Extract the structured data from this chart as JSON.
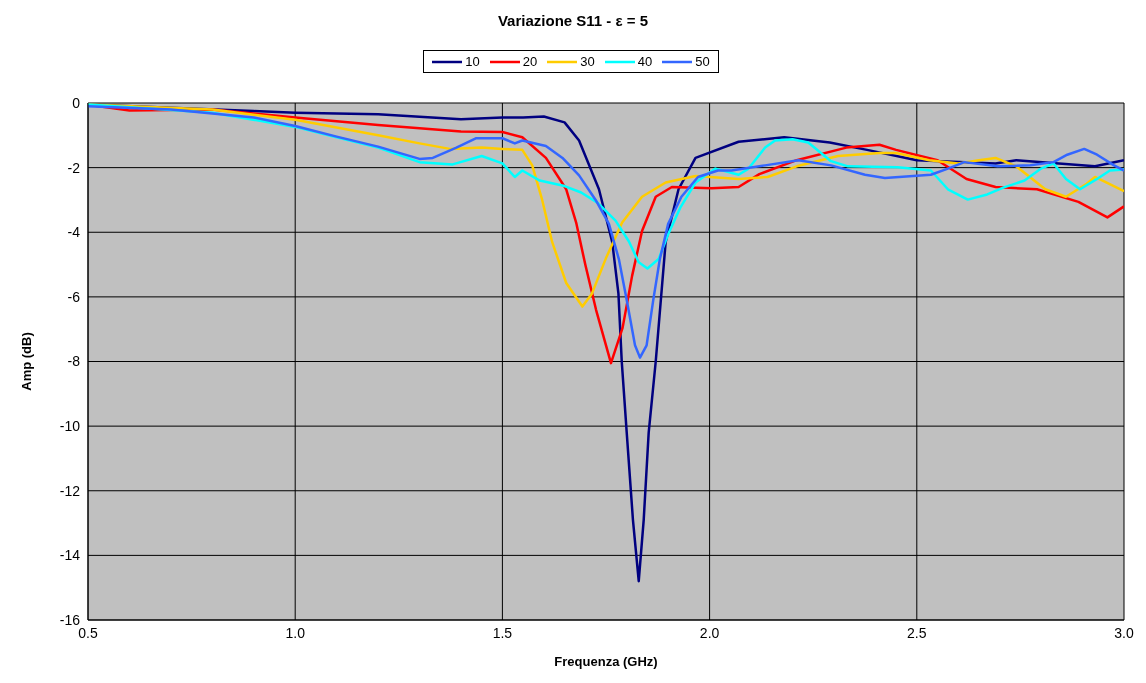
{
  "chart_data": {
    "type": "line",
    "title": "Variazione S11 - ε = 5",
    "xlabel": "Frequenza (GHz)",
    "ylabel": "Amp (dB)",
    "xlim": [
      0.5,
      3.0
    ],
    "ylim": [
      -16,
      0
    ],
    "xticks": [
      {
        "value": 0.5,
        "label": "0.5"
      },
      {
        "value": 1,
        "label": "1.0"
      },
      {
        "value": 1.5,
        "label": "1.5"
      },
      {
        "value": 2,
        "label": "2.0"
      },
      {
        "value": 2.5,
        "label": "2.5"
      },
      {
        "value": 3,
        "label": "3.0"
      }
    ],
    "yticks": [
      -16,
      -14,
      -12,
      -10,
      -8,
      -6,
      -4,
      -2,
      0
    ],
    "grid": true,
    "legend": "top",
    "marker": "none",
    "line_style": "solid",
    "series": [
      {
        "name": "10",
        "color": "#000080",
        "x": [
          0.5,
          0.7,
          0.9,
          1.0,
          1.2,
          1.4,
          1.5,
          1.55,
          1.6,
          1.65,
          1.685,
          1.733,
          1.765,
          1.78,
          1.788,
          1.8,
          1.815,
          1.829,
          1.841,
          1.853,
          1.87,
          1.894,
          1.925,
          1.966,
          2.07,
          2.18,
          2.29,
          2.38,
          2.5,
          2.69,
          2.74,
          2.93,
          3.0
        ],
        "values": [
          -0.05,
          -0.15,
          -0.25,
          -0.3,
          -0.35,
          -0.5,
          -0.45,
          -0.45,
          -0.42,
          -0.6,
          -1.16,
          -2.67,
          -4.3,
          -5.9,
          -8.0,
          -10.2,
          -12.9,
          -14.8,
          -12.9,
          -10.2,
          -8.0,
          -4.3,
          -2.67,
          -1.7,
          -1.2,
          -1.06,
          -1.22,
          -1.45,
          -1.77,
          -1.87,
          -1.77,
          -1.96,
          -1.77
        ]
      },
      {
        "name": "20",
        "color": "#ff0000",
        "x": [
          0.5,
          0.6,
          0.8,
          1.0,
          1.2,
          1.4,
          1.5,
          1.548,
          1.605,
          1.654,
          1.678,
          1.7,
          1.726,
          1.762,
          1.79,
          1.813,
          1.837,
          1.87,
          1.909,
          2.005,
          2.07,
          2.12,
          2.21,
          2.33,
          2.41,
          2.45,
          2.55,
          2.62,
          2.69,
          2.79,
          2.89,
          2.96,
          3.0
        ],
        "values": [
          -0.05,
          -0.23,
          -0.2,
          -0.45,
          -0.68,
          -0.88,
          -0.9,
          -1.06,
          -1.7,
          -2.67,
          -3.7,
          -5.0,
          -6.4,
          -8.05,
          -6.96,
          -5.35,
          -3.96,
          -2.9,
          -2.6,
          -2.64,
          -2.6,
          -2.2,
          -1.77,
          -1.38,
          -1.29,
          -1.45,
          -1.77,
          -2.35,
          -2.6,
          -2.67,
          -3.06,
          -3.54,
          -3.2
        ]
      },
      {
        "name": "30",
        "color": "#ffcc00",
        "x": [
          0.5,
          0.8,
          1.0,
          1.2,
          1.3,
          1.373,
          1.45,
          1.5,
          1.548,
          1.572,
          1.596,
          1.62,
          1.654,
          1.693,
          1.716,
          1.75,
          1.789,
          1.837,
          1.894,
          1.966,
          2.07,
          2.14,
          2.21,
          2.31,
          2.41,
          2.45,
          2.53,
          2.6,
          2.65,
          2.69,
          2.74,
          2.81,
          2.86,
          2.91,
          2.93,
          3.0
        ],
        "values": [
          -0.05,
          -0.2,
          -0.52,
          -1.0,
          -1.25,
          -1.42,
          -1.38,
          -1.42,
          -1.45,
          -1.93,
          -3.0,
          -4.3,
          -5.57,
          -6.3,
          -5.9,
          -4.8,
          -3.7,
          -2.9,
          -2.46,
          -2.26,
          -2.35,
          -2.29,
          -1.96,
          -1.64,
          -1.55,
          -1.55,
          -1.77,
          -1.87,
          -1.77,
          -1.7,
          -1.96,
          -2.67,
          -2.9,
          -2.5,
          -2.29,
          -2.73
        ]
      },
      {
        "name": "40",
        "color": "#00ffff",
        "x": [
          0.5,
          0.8,
          1.0,
          1.1,
          1.2,
          1.3,
          1.38,
          1.45,
          1.5,
          1.53,
          1.548,
          1.59,
          1.65,
          1.69,
          1.73,
          1.773,
          1.805,
          1.829,
          1.85,
          1.877,
          1.9,
          1.93,
          1.966,
          2.014,
          2.07,
          2.094,
          2.134,
          2.158,
          2.2,
          2.238,
          2.293,
          2.334,
          2.454,
          2.534,
          2.575,
          2.623,
          2.67,
          2.71,
          2.76,
          2.8,
          2.83,
          2.86,
          2.894,
          2.935,
          2.966,
          3.0
        ],
        "values": [
          -0.05,
          -0.3,
          -0.74,
          -1.06,
          -1.38,
          -1.83,
          -1.9,
          -1.64,
          -1.87,
          -2.29,
          -2.09,
          -2.4,
          -2.57,
          -2.77,
          -3.09,
          -3.64,
          -4.28,
          -4.93,
          -5.12,
          -4.83,
          -4.06,
          -3.22,
          -2.46,
          -2.03,
          -2.22,
          -2.03,
          -1.38,
          -1.16,
          -1.12,
          -1.22,
          -1.8,
          -1.96,
          -1.99,
          -2.09,
          -2.67,
          -2.99,
          -2.83,
          -2.61,
          -2.4,
          -2.03,
          -1.87,
          -2.35,
          -2.67,
          -2.35,
          -2.09,
          -2.06
        ]
      },
      {
        "name": "50",
        "color": "#3366ff",
        "x": [
          0.5,
          0.7,
          0.9,
          1.0,
          1.1,
          1.2,
          1.3,
          1.332,
          1.389,
          1.437,
          1.5,
          1.53,
          1.548,
          1.605,
          1.645,
          1.685,
          1.725,
          1.757,
          1.781,
          1.8,
          1.82,
          1.832,
          1.848,
          1.864,
          1.88,
          1.9,
          1.932,
          1.972,
          2.02,
          2.053,
          2.134,
          2.214,
          2.293,
          2.375,
          2.423,
          2.534,
          2.575,
          2.615,
          2.695,
          2.774,
          2.83,
          2.863,
          2.904,
          2.935,
          2.976,
          3.0
        ],
        "values": [
          -0.1,
          -0.2,
          -0.45,
          -0.71,
          -1.04,
          -1.35,
          -1.73,
          -1.7,
          -1.38,
          -1.09,
          -1.09,
          -1.25,
          -1.16,
          -1.33,
          -1.7,
          -2.24,
          -3.0,
          -3.74,
          -4.83,
          -6.1,
          -7.5,
          -7.88,
          -7.5,
          -6.1,
          -4.83,
          -3.74,
          -2.9,
          -2.29,
          -2.09,
          -2.09,
          -1.93,
          -1.77,
          -1.93,
          -2.22,
          -2.32,
          -2.22,
          -2.03,
          -1.83,
          -1.96,
          -1.93,
          -1.83,
          -1.6,
          -1.42,
          -1.6,
          -1.93,
          -2.09
        ]
      }
    ]
  }
}
